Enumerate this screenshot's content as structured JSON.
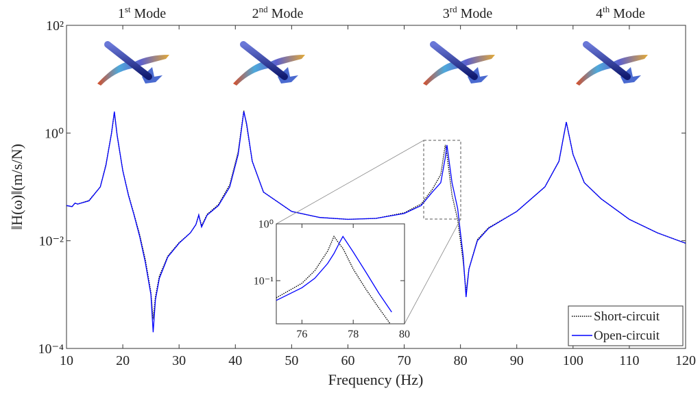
{
  "chart_data": {
    "type": "line",
    "log_y": true,
    "xlabel": "Frequency (Hz)",
    "ylabel": "‖H(ω)‖(m/s/N)",
    "xlim": [
      10,
      120
    ],
    "ylim": [
      0.0001,
      100
    ],
    "xticks": [
      10,
      20,
      30,
      40,
      50,
      60,
      70,
      80,
      90,
      100,
      110,
      120
    ],
    "yticks": [
      {
        "value": 0.0001,
        "label": "10⁻⁴"
      },
      {
        "value": 0.01,
        "label": "10⁻²"
      },
      {
        "value": 1,
        "label": "10⁰"
      },
      {
        "value": 100,
        "label": "10²"
      }
    ],
    "legend": "lower right",
    "annotations": [
      {
        "ordinal": "1",
        "suffix": "st",
        "word": "Mode"
      },
      {
        "ordinal": "2",
        "suffix": "nd",
        "word": "Mode"
      },
      {
        "ordinal": "3",
        "suffix": "rd",
        "word": "Mode"
      },
      {
        "ordinal": "4",
        "suffix": "th",
        "word": "Mode"
      }
    ],
    "x": [
      10,
      11,
      11.5,
      12,
      14,
      16,
      17,
      18,
      18.5,
      19,
      20,
      21,
      22,
      23,
      24,
      25,
      25.4,
      25.8,
      26.5,
      28,
      30,
      32,
      33,
      33.5,
      34,
      35,
      37,
      39,
      40.5,
      41.5,
      42,
      43,
      45,
      50,
      55,
      60,
      65,
      70,
      73,
      75,
      76.5,
      77.3,
      77.6,
      78.5,
      79.5,
      80.5,
      81,
      81.5,
      83,
      85,
      90,
      95,
      97.5,
      98.8,
      100,
      102,
      105,
      110,
      115,
      120
    ],
    "series": [
      {
        "name": "Short-circuit",
        "color": "#000000",
        "dash": "dotted",
        "values": [
          0.045,
          0.043,
          0.05,
          0.048,
          0.056,
          0.1,
          0.26,
          1.0,
          2.4,
          0.9,
          0.2,
          0.072,
          0.031,
          0.013,
          0.0045,
          0.0011,
          0.00035,
          0.0009,
          0.0022,
          0.0052,
          0.0092,
          0.014,
          0.02,
          0.03,
          0.019,
          0.031,
          0.047,
          0.11,
          0.45,
          2.6,
          1.4,
          0.3,
          0.08,
          0.035,
          0.027,
          0.025,
          0.026,
          0.033,
          0.048,
          0.09,
          0.17,
          0.6,
          0.4,
          0.07,
          0.025,
          0.004,
          0.0011,
          0.003,
          0.0105,
          0.0175,
          0.035,
          0.1,
          0.3,
          1.6,
          0.4,
          0.12,
          0.06,
          0.025,
          0.014,
          0.009
        ]
      },
      {
        "name": "Open-circuit",
        "color": "#0000ff",
        "dash": "solid",
        "values": [
          0.045,
          0.043,
          0.05,
          0.048,
          0.055,
          0.1,
          0.25,
          1.0,
          2.5,
          0.9,
          0.2,
          0.07,
          0.03,
          0.012,
          0.004,
          0.001,
          0.0002,
          0.0008,
          0.002,
          0.005,
          0.009,
          0.014,
          0.02,
          0.03,
          0.018,
          0.03,
          0.045,
          0.1,
          0.4,
          2.5,
          1.5,
          0.3,
          0.08,
          0.035,
          0.027,
          0.025,
          0.026,
          0.032,
          0.045,
          0.08,
          0.12,
          0.35,
          0.6,
          0.12,
          0.04,
          0.005,
          0.0009,
          0.003,
          0.01,
          0.017,
          0.035,
          0.1,
          0.3,
          1.6,
          0.4,
          0.12,
          0.06,
          0.025,
          0.014,
          0.009
        ]
      }
    ],
    "inset": {
      "xlim": [
        75,
        80
      ],
      "ylim": [
        0.0174,
        1
      ],
      "xticks": [
        76,
        78,
        80
      ],
      "yticks": [
        {
          "value": 1,
          "label": "10⁰"
        },
        {
          "value": 0.1,
          "label": "10⁻¹"
        }
      ],
      "x": [
        75,
        76,
        76.5,
        77,
        77.25,
        77.5,
        77.6,
        78,
        78.5,
        79,
        79.5
      ],
      "series": [
        {
          "color": "#000000",
          "dash": "dotted",
          "values": [
            0.05,
            0.09,
            0.15,
            0.33,
            0.6,
            0.42,
            0.37,
            0.16,
            0.07,
            0.033,
            0.016
          ]
        },
        {
          "color": "#0000ff",
          "dash": "solid",
          "values": [
            0.045,
            0.075,
            0.11,
            0.2,
            0.3,
            0.5,
            0.6,
            0.32,
            0.14,
            0.06,
            0.028
          ]
        }
      ]
    }
  }
}
